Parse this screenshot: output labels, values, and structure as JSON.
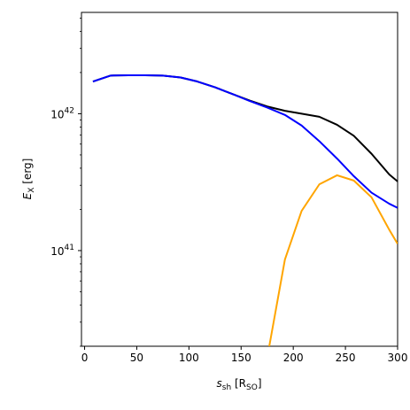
{
  "chart_data": {
    "type": "line",
    "title": "",
    "xlabel": {
      "main": "s",
      "sub": "sh",
      "unit_open": " [R",
      "unit_sub": "SO",
      "unit_close": "]"
    },
    "ylabel": {
      "main": "E",
      "sub": "X",
      "unit": " [erg]"
    },
    "x_range": [
      -3,
      300
    ],
    "y_range": [
      2e+40,
      5.5e+42
    ],
    "y_scale": "log",
    "grid": false,
    "x_ticks": [
      0,
      50,
      100,
      150,
      200,
      250,
      300
    ],
    "y_major_ticks": [
      {
        "value": 1e+41,
        "base": "10",
        "exp": "41"
      },
      {
        "value": 1e+42,
        "base": "10",
        "exp": "42"
      }
    ],
    "y_minor_ticks": [
      2e+40,
      3e+40,
      4e+40,
      5e+40,
      6e+40,
      7e+40,
      8e+40,
      9e+40,
      2e+41,
      3e+41,
      4e+41,
      5e+41,
      6e+41,
      7e+41,
      8e+41,
      9e+41,
      2e+42,
      3e+42,
      4e+42,
      5e+42
    ],
    "series": [
      {
        "color": "#000000",
        "x": [
          8,
          25,
          42,
          58,
          75,
          92,
          108,
          125,
          142,
          158,
          175,
          192,
          208,
          225,
          242,
          258,
          275,
          292,
          300
        ],
        "y": [
          1.72e+42,
          1.9e+42,
          1.91e+42,
          1.91e+42,
          1.9e+42,
          1.84e+42,
          1.72e+42,
          1.56e+42,
          1.39e+42,
          1.25e+42,
          1.13e+42,
          1.05e+42,
          1e+42,
          9.5e+41,
          8.3e+41,
          6.9e+41,
          5.1e+41,
          3.6e+41,
          3.2e+41
        ]
      },
      {
        "color": "#0000ff",
        "x": [
          8,
          25,
          42,
          58,
          75,
          92,
          108,
          125,
          142,
          158,
          175,
          192,
          208,
          225,
          242,
          258,
          275,
          292,
          300
        ],
        "y": [
          1.72e+42,
          1.9e+42,
          1.91e+42,
          1.91e+42,
          1.9e+42,
          1.84e+42,
          1.72e+42,
          1.56e+42,
          1.39e+42,
          1.24e+42,
          1.11e+42,
          9.8e+41,
          8.2e+41,
          6.3e+41,
          4.7e+41,
          3.5e+41,
          2.65e+41,
          2.2e+41,
          2.05e+41
        ]
      },
      {
        "color": "#ffa500",
        "x": [
          177,
          192,
          208,
          225,
          242,
          258,
          275,
          292,
          300
        ],
        "y": [
          2e+40,
          8.6e+40,
          1.95e+41,
          3.05e+41,
          3.55e+41,
          3.25e+41,
          2.45e+41,
          1.42e+41,
          1.12e+41
        ]
      }
    ]
  }
}
